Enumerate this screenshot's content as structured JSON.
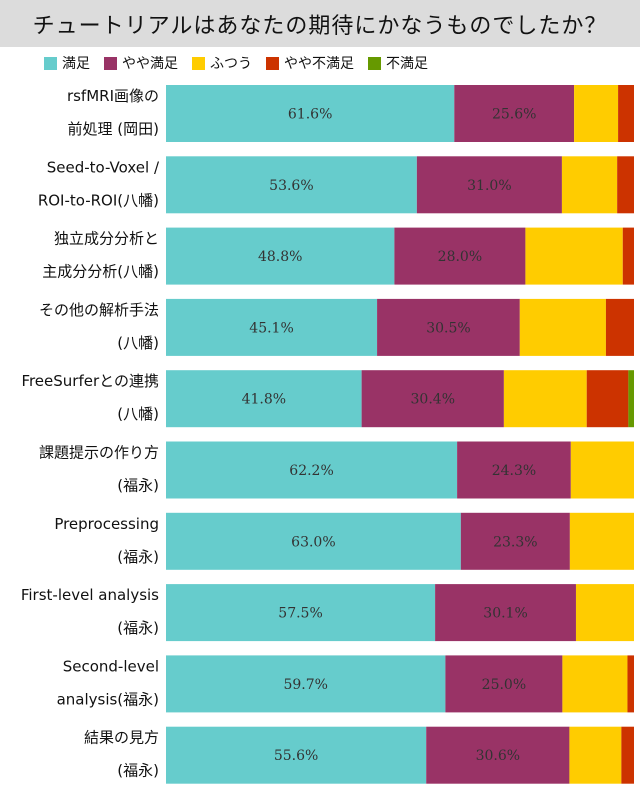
{
  "chart_data": {
    "type": "bar",
    "orientation": "horizontal",
    "stacked": true,
    "title": "チュートリアルはあなたの期待にかなうものでしたか？",
    "xlim": [
      0,
      100
    ],
    "grid": false,
    "legend_position": "top-left",
    "categories": [
      [
        "rsfMRI画像の",
        "前処理 (岡田)"
      ],
      [
        "Seed-to-Voxel /",
        "ROI-to-ROI(八幡)"
      ],
      [
        "独立成分分析と",
        "主成分分析(八幡)"
      ],
      [
        "その他の解析手法",
        "(八幡)"
      ],
      [
        "FreeSurferとの連携",
        "(八幡)"
      ],
      [
        "課題提示の作り方",
        "(福永)"
      ],
      [
        "Preprocessing",
        "(福永)"
      ],
      [
        "First-level analysis",
        "(福永)"
      ],
      [
        "Second-level",
        "analysis(福永)"
      ],
      [
        "結果の見方",
        "(福永)"
      ]
    ],
    "series": [
      {
        "name": "満足",
        "color": "#66cccc",
        "values": [
          61.6,
          53.6,
          48.8,
          45.1,
          41.8,
          62.2,
          63.0,
          57.5,
          59.7,
          55.6
        ]
      },
      {
        "name": "やや満足",
        "color": "#993366",
        "values": [
          25.6,
          31.0,
          28.0,
          30.5,
          30.4,
          24.3,
          23.3,
          30.1,
          25.0,
          30.6
        ]
      },
      {
        "name": "ふつう",
        "color": "#ffcc00",
        "values": [
          9.4,
          11.8,
          20.8,
          18.4,
          17.7,
          13.5,
          13.7,
          12.4,
          13.9,
          11.1
        ]
      },
      {
        "name": "やや不満足",
        "color": "#cc3300",
        "values": [
          3.4,
          3.6,
          2.4,
          6.0,
          8.9,
          0.0,
          0.0,
          0.0,
          1.4,
          2.7
        ]
      },
      {
        "name": "不満足",
        "color": "#669900",
        "values": [
          0.0,
          0.0,
          0.0,
          0.0,
          1.2,
          0.0,
          0.0,
          0.0,
          0.0,
          0.0
        ]
      }
    ],
    "value_labels": {
      "満足": [
        "61.6%",
        "53.6%",
        "48.8%",
        "45.1%",
        "41.8%",
        "62.2%",
        "63.0%",
        "57.5%",
        "59.7%",
        "55.6%"
      ],
      "やや満足": [
        "25.6%",
        "31.0%",
        "28.0%",
        "30.5%",
        "30.4%",
        "24.3%",
        "23.3%",
        "30.1%",
        "25.0%",
        "30.6%"
      ]
    }
  }
}
